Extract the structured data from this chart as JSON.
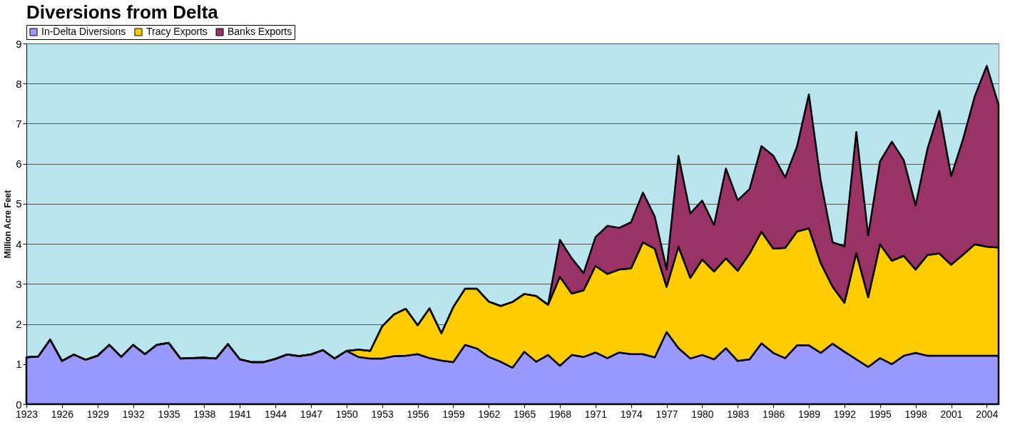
{
  "chart_data": {
    "type": "area",
    "stacked": true,
    "title": "Diversions from Delta",
    "ylabel": "Million Acre Feet",
    "categories": [
      "1923",
      null,
      null,
      "1926",
      null,
      null,
      "1929",
      null,
      null,
      "1932",
      null,
      null,
      "1935",
      null,
      null,
      "1938",
      null,
      null,
      "1941",
      null,
      null,
      "1944",
      null,
      null,
      "1947",
      null,
      null,
      "1950",
      null,
      null,
      "1953",
      null,
      null,
      "1956",
      null,
      null,
      "1959",
      null,
      null,
      "1962",
      null,
      null,
      "1965",
      null,
      null,
      "1968",
      null,
      null,
      "1971",
      null,
      null,
      "1974",
      null,
      null,
      "1977",
      null,
      null,
      "1980",
      null,
      null,
      "1983",
      null,
      null,
      "1986",
      null,
      null,
      "1989",
      null,
      null,
      "1992",
      null,
      null,
      "1995",
      null,
      null,
      "1998",
      null,
      null,
      "2001",
      null,
      null,
      "2004",
      null
    ],
    "series": [
      {
        "name": "In-Delta Diversions",
        "color": "#9999ff",
        "values": [
          1.17,
          1.19,
          1.61,
          1.08,
          1.24,
          1.11,
          1.21,
          1.48,
          1.18,
          1.48,
          1.25,
          1.48,
          1.53,
          1.14,
          1.15,
          1.16,
          1.14,
          1.5,
          1.12,
          1.05,
          1.05,
          1.13,
          1.24,
          1.2,
          1.24,
          1.35,
          1.14,
          1.33,
          1.18,
          1.14,
          1.14,
          1.2,
          1.21,
          1.25,
          1.15,
          1.09,
          1.05,
          1.48,
          1.39,
          1.18,
          1.06,
          0.91,
          1.31,
          1.06,
          1.23,
          0.96,
          1.23,
          1.18,
          1.29,
          1.15,
          1.29,
          1.25,
          1.25,
          1.17,
          1.8,
          1.4,
          1.14,
          1.23,
          1.12,
          1.4,
          1.08,
          1.12,
          1.52,
          1.28,
          1.15,
          1.47,
          1.47,
          1.28,
          1.51,
          1.31,
          1.12,
          0.93,
          1.15,
          1.0,
          1.21,
          1.28,
          1.21,
          1.21,
          1.21,
          1.21,
          1.21,
          1.21,
          1.21
        ]
      },
      {
        "name": "Tracy Exports",
        "color": "#ffcc00",
        "values": [
          0,
          0,
          0,
          0,
          0,
          0,
          0,
          0,
          0,
          0,
          0,
          0,
          0,
          0,
          0,
          0,
          0,
          0,
          0,
          0,
          0,
          0,
          0,
          0,
          0,
          0,
          0,
          0,
          0.18,
          0.19,
          0.8,
          1.04,
          1.17,
          0.72,
          1.24,
          0.68,
          1.37,
          1.4,
          1.49,
          1.38,
          1.39,
          1.64,
          1.44,
          1.64,
          1.25,
          2.22,
          1.53,
          1.66,
          2.16,
          2.1,
          2.07,
          2.14,
          2.79,
          2.71,
          1.13,
          2.53,
          2.01,
          2.38,
          2.19,
          2.24,
          2.25,
          2.64,
          2.78,
          2.6,
          2.75,
          2.84,
          2.92,
          2.24,
          1.42,
          1.22,
          2.65,
          1.74,
          2.84,
          2.58,
          2.49,
          2.08,
          2.51,
          2.55,
          2.27,
          2.52,
          2.78,
          2.72,
          2.7
        ]
      },
      {
        "name": "Banks Exports",
        "color": "#993366",
        "values": [
          0,
          0,
          0,
          0,
          0,
          0,
          0,
          0,
          0,
          0,
          0,
          0,
          0,
          0,
          0,
          0,
          0,
          0,
          0,
          0,
          0,
          0,
          0,
          0,
          0,
          0,
          0,
          0,
          0,
          0,
          0,
          0,
          0,
          0,
          0,
          0,
          0,
          0,
          0,
          0,
          0,
          0,
          0,
          0,
          0,
          0.92,
          0.88,
          0.43,
          0.72,
          1.2,
          1.04,
          1.15,
          1.24,
          0.8,
          0.43,
          2.27,
          1.61,
          1.47,
          1.16,
          2.24,
          1.76,
          1.61,
          2.14,
          2.32,
          1.76,
          2.12,
          3.34,
          2.05,
          1.11,
          1.41,
          3.02,
          1.54,
          2.07,
          2.97,
          2.39,
          1.6,
          2.65,
          3.56,
          2.21,
          2.88,
          3.7,
          4.51,
          3.56
        ]
      }
    ],
    "ylim": [
      0,
      9
    ],
    "yticks": [
      0,
      1,
      2,
      3,
      4,
      5,
      6,
      7,
      8,
      9
    ],
    "grid": "y",
    "legend": "top"
  }
}
